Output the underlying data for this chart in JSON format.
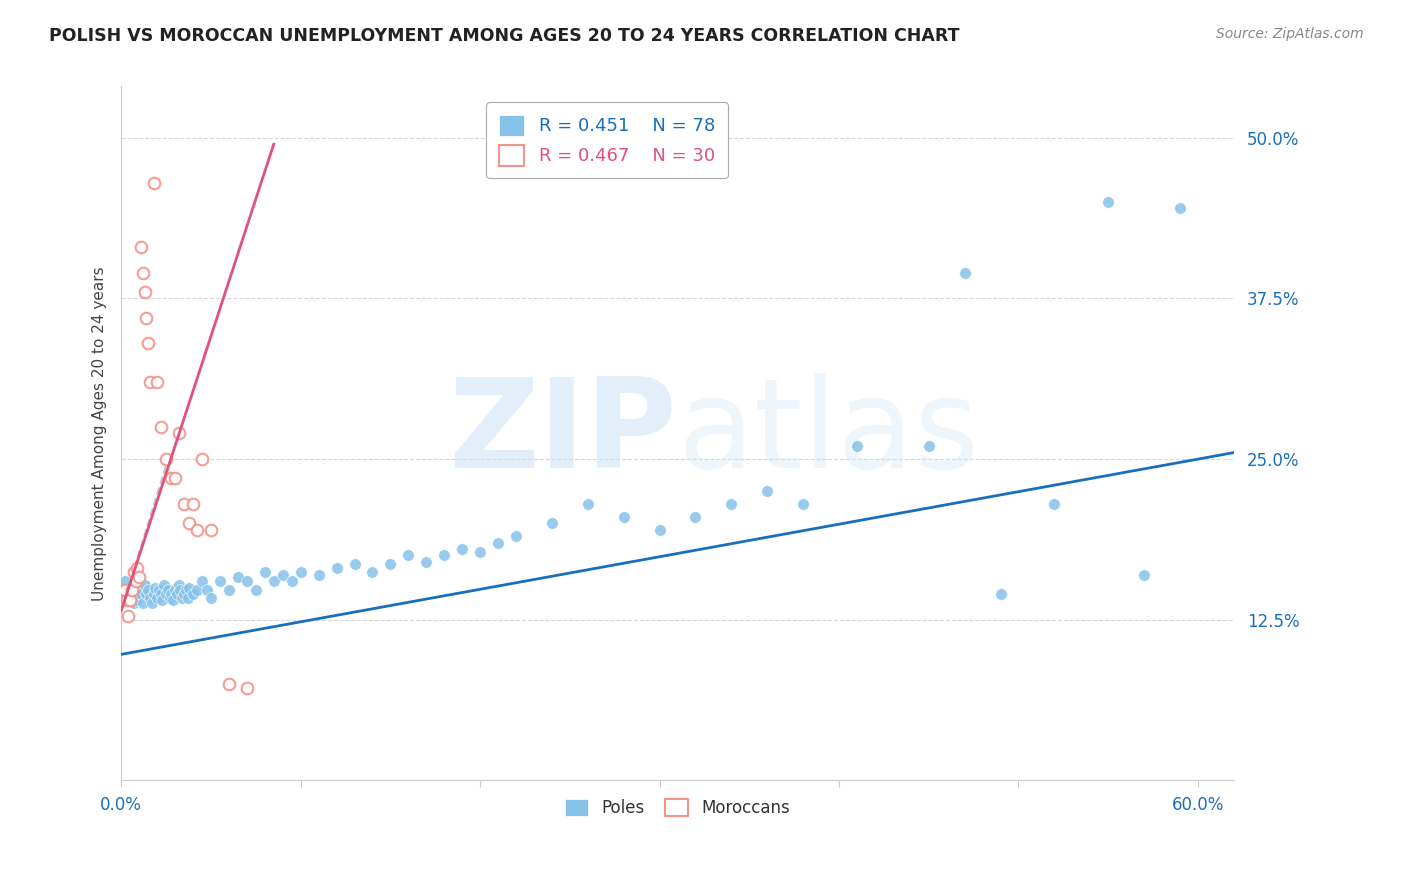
{
  "title": "POLISH VS MOROCCAN UNEMPLOYMENT AMONG AGES 20 TO 24 YEARS CORRELATION CHART",
  "source": "Source: ZipAtlas.com",
  "ylabel": "Unemployment Among Ages 20 to 24 years",
  "xlim": [
    0.0,
    0.62
  ],
  "ylim": [
    0.0,
    0.54
  ],
  "blue_color": "#85c1e9",
  "pink_color": "#f1948a",
  "line_blue": "#1a6fbd",
  "line_pink": "#e0527a",
  "tick_color": "#1a6fbd",
  "watermark_color": "#d0e4f5",
  "legend_r_blue": "R = 0.451",
  "legend_n_blue": "N = 78",
  "legend_r_pink": "R = 0.467",
  "legend_n_pink": "N = 30",
  "poles_label": "Poles",
  "moroccans_label": "Moroccans",
  "blue_scatter_x": [
    0.002,
    0.004,
    0.006,
    0.007,
    0.008,
    0.009,
    0.01,
    0.011,
    0.012,
    0.013,
    0.014,
    0.015,
    0.016,
    0.017,
    0.018,
    0.019,
    0.02,
    0.021,
    0.022,
    0.023,
    0.024,
    0.025,
    0.026,
    0.027,
    0.028,
    0.029,
    0.03,
    0.031,
    0.032,
    0.033,
    0.034,
    0.035,
    0.036,
    0.037,
    0.038,
    0.04,
    0.042,
    0.045,
    0.048,
    0.05,
    0.055,
    0.06,
    0.065,
    0.07,
    0.075,
    0.08,
    0.085,
    0.09,
    0.095,
    0.1,
    0.11,
    0.12,
    0.13,
    0.14,
    0.15,
    0.16,
    0.17,
    0.18,
    0.19,
    0.2,
    0.21,
    0.22,
    0.24,
    0.26,
    0.28,
    0.3,
    0.32,
    0.34,
    0.36,
    0.38,
    0.41,
    0.45,
    0.47,
    0.49,
    0.52,
    0.55,
    0.57,
    0.59
  ],
  "blue_scatter_y": [
    0.155,
    0.148,
    0.142,
    0.138,
    0.145,
    0.14,
    0.15,
    0.145,
    0.138,
    0.152,
    0.145,
    0.148,
    0.142,
    0.138,
    0.145,
    0.15,
    0.142,
    0.148,
    0.145,
    0.14,
    0.152,
    0.145,
    0.148,
    0.142,
    0.145,
    0.14,
    0.148,
    0.145,
    0.152,
    0.148,
    0.142,
    0.145,
    0.148,
    0.142,
    0.15,
    0.145,
    0.148,
    0.155,
    0.148,
    0.142,
    0.155,
    0.148,
    0.158,
    0.155,
    0.148,
    0.162,
    0.155,
    0.16,
    0.155,
    0.162,
    0.16,
    0.165,
    0.168,
    0.162,
    0.168,
    0.175,
    0.17,
    0.175,
    0.18,
    0.178,
    0.185,
    0.19,
    0.2,
    0.215,
    0.205,
    0.195,
    0.205,
    0.215,
    0.225,
    0.215,
    0.26,
    0.26,
    0.395,
    0.145,
    0.215,
    0.45,
    0.16,
    0.445
  ],
  "pink_scatter_x": [
    0.002,
    0.003,
    0.004,
    0.005,
    0.006,
    0.007,
    0.008,
    0.009,
    0.01,
    0.011,
    0.012,
    0.013,
    0.014,
    0.015,
    0.016,
    0.018,
    0.02,
    0.022,
    0.025,
    0.028,
    0.03,
    0.032,
    0.035,
    0.038,
    0.04,
    0.042,
    0.045,
    0.05,
    0.06,
    0.07
  ],
  "pink_scatter_y": [
    0.148,
    0.14,
    0.128,
    0.14,
    0.148,
    0.162,
    0.155,
    0.165,
    0.158,
    0.415,
    0.395,
    0.38,
    0.36,
    0.34,
    0.31,
    0.465,
    0.31,
    0.275,
    0.25,
    0.235,
    0.235,
    0.27,
    0.215,
    0.2,
    0.215,
    0.195,
    0.25,
    0.195,
    0.075,
    0.072
  ],
  "blue_line_x": [
    0.0,
    0.62
  ],
  "blue_line_y": [
    0.098,
    0.255
  ],
  "pink_line_x": [
    0.0,
    0.085
  ],
  "pink_line_y": [
    0.132,
    0.495
  ],
  "dash_line_x": [
    0.0,
    0.025
  ],
  "dash_line_y": [
    0.132,
    0.245
  ]
}
